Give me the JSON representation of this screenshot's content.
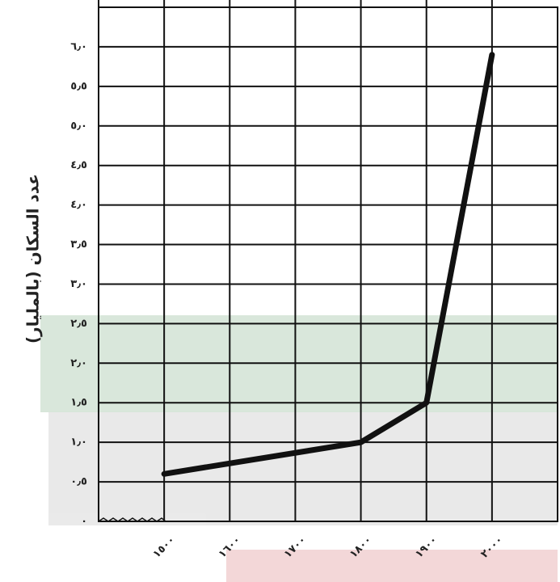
{
  "chart_data": {
    "type": "line",
    "y_label": "عدد السكان (بالمليار)",
    "x": [
      1500,
      1800,
      1900,
      2000
    ],
    "series": [
      {
        "name": "عدد السكان",
        "color": "#111111",
        "values": [
          0.6,
          1.0,
          1.5,
          5.9
        ]
      }
    ],
    "xlim": [
      1400,
      2100
    ],
    "xticks": [
      {
        "value": 1500,
        "label": "١٥٠٠"
      },
      {
        "value": 1600,
        "label": "١٦٠٠"
      },
      {
        "value": 1700,
        "label": "١٧٠٠"
      },
      {
        "value": 1800,
        "label": "١٨٠٠"
      },
      {
        "value": 1900,
        "label": "١٩٠٠"
      },
      {
        "value": 2000,
        "label": "٢٠٠٠"
      }
    ],
    "ylim": [
      0,
      6.5
    ],
    "yticks": [
      {
        "value": 0,
        "label": "٠"
      },
      {
        "value": 0.5,
        "label": "٠٫٥"
      },
      {
        "value": 1,
        "label": "١٫٠"
      },
      {
        "value": 1.5,
        "label": "١٫٥"
      },
      {
        "value": 2,
        "label": "٢٫٠"
      },
      {
        "value": 2.5,
        "label": "٢٫٥"
      },
      {
        "value": 3,
        "label": "٣٫٠"
      },
      {
        "value": 3.5,
        "label": "٣٫٥"
      },
      {
        "value": 4,
        "label": "٤٫٠"
      },
      {
        "value": 4.5,
        "label": "٤٫٥"
      },
      {
        "value": 5,
        "label": "٥٫٠"
      },
      {
        "value": 5.5,
        "label": "٥٫٥"
      },
      {
        "value": 6,
        "label": "٦٫٠"
      }
    ],
    "grid": true
  }
}
